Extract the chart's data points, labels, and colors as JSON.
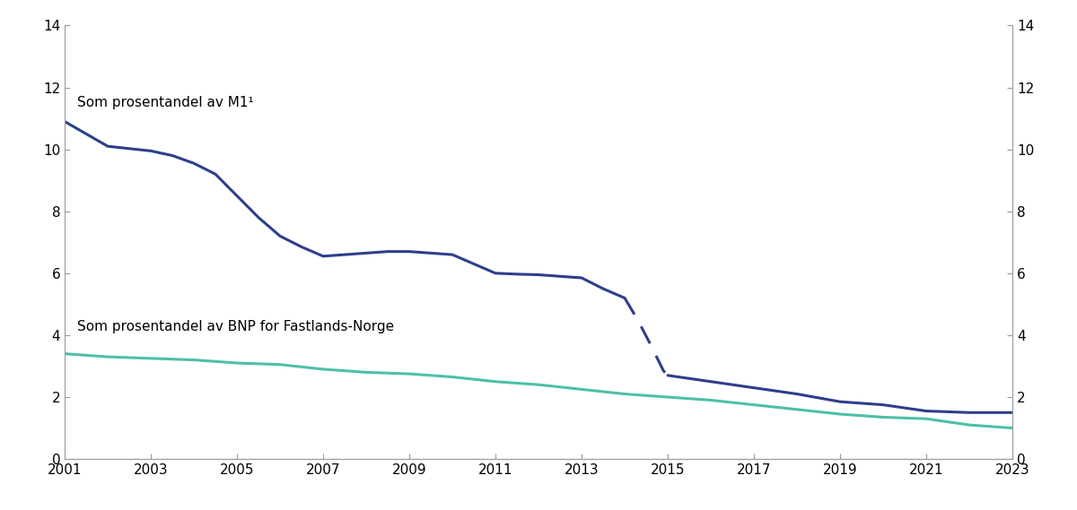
{
  "m1_years_solid1": [
    2001,
    2002,
    2003,
    2003.5,
    2004,
    2004.5,
    2005,
    2005.5,
    2006,
    2006.5,
    2007,
    2007.5,
    2008,
    2008.5,
    2009,
    2009.5,
    2010,
    2010.5,
    2011,
    2011.5,
    2012,
    2012.5,
    2013,
    2013.5,
    2014.0
  ],
  "m1_values_solid1": [
    10.9,
    10.1,
    9.95,
    9.8,
    9.55,
    9.2,
    8.5,
    7.8,
    7.2,
    6.85,
    6.55,
    6.6,
    6.65,
    6.7,
    6.7,
    6.65,
    6.6,
    6.3,
    6.0,
    5.97,
    5.95,
    5.9,
    5.85,
    5.5,
    5.2
  ],
  "m1_years_dashed": [
    2014.0,
    2014.3,
    2014.6,
    2014.9,
    2015.0
  ],
  "m1_values_dashed": [
    5.2,
    4.5,
    3.7,
    2.85,
    2.7
  ],
  "m1_years_solid2": [
    2015.0,
    2016,
    2017,
    2018,
    2019,
    2020,
    2021,
    2022,
    2023
  ],
  "m1_values_solid2": [
    2.7,
    2.5,
    2.3,
    2.1,
    1.85,
    1.75,
    1.55,
    1.5,
    1.5
  ],
  "bnp_years": [
    2001,
    2002,
    2003,
    2004,
    2005,
    2006,
    2007,
    2008,
    2009,
    2010,
    2011,
    2012,
    2013,
    2014,
    2015,
    2016,
    2017,
    2018,
    2019,
    2020,
    2021,
    2022,
    2023
  ],
  "bnp_values": [
    3.4,
    3.3,
    3.25,
    3.2,
    3.1,
    3.05,
    2.9,
    2.8,
    2.75,
    2.65,
    2.5,
    2.4,
    2.25,
    2.1,
    2.0,
    1.9,
    1.75,
    1.6,
    1.45,
    1.35,
    1.3,
    1.1,
    1.0
  ],
  "m1_color": "#2E3E8C",
  "bnp_color": "#4DBFA8",
  "ylim": [
    0,
    14
  ],
  "yticks": [
    0,
    2,
    4,
    6,
    8,
    10,
    12,
    14
  ],
  "xticks": [
    2001,
    2003,
    2005,
    2007,
    2009,
    2011,
    2013,
    2015,
    2017,
    2019,
    2021,
    2023
  ],
  "label_m1": "Som prosentandel av M1¹",
  "label_bnp": "Som prosentandel av BNP for Fastlands-Norge",
  "linewidth": 2.2,
  "fig_width": 12.0,
  "fig_height": 5.69
}
